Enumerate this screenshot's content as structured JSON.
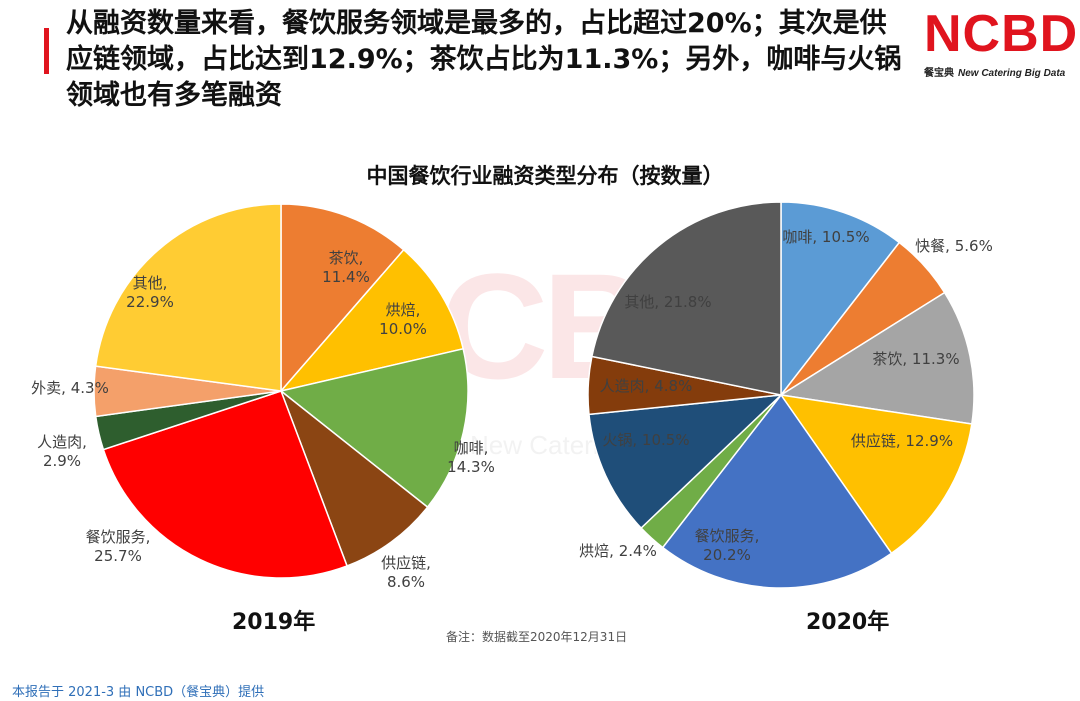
{
  "headline": "从融资数量来看，餐饮服务领域是最多的，占比超过20%；其次是供应链领域，占比达到12.9%；茶饮占比为11.3%；另外，咖啡与火锅领域也有多笔融资",
  "logo": {
    "main": "NCBD",
    "sub_cn": "餐宝典",
    "sub_en": "New Catering Big Data"
  },
  "watermark": {
    "letters": "CBD",
    "text": "New Catering"
  },
  "note": "备注：数据截至2020年12月31日",
  "footer": "本报告于 2021-3 由 NCBD（餐宝典）提供",
  "colors": {
    "accent": "#e0141e"
  },
  "chart_data": {
    "type": "pie",
    "title": "中国餐饮行业融资类型分布（按数量）",
    "charts": [
      {
        "year_label": "2019年",
        "slices": [
          {
            "name": "茶饮",
            "value": 11.4,
            "pct": "11.4%",
            "color": "#ED7D31",
            "label_mode": "stack"
          },
          {
            "name": "烘焙",
            "value": 10.0,
            "pct": "10.0%",
            "color": "#FFC000",
            "label_mode": "stack"
          },
          {
            "name": "咖啡",
            "value": 14.3,
            "pct": "14.3%",
            "color": "#70AD47",
            "label_mode": "stack"
          },
          {
            "name": "供应链",
            "value": 8.6,
            "pct": "8.6%",
            "color": "#8B4513",
            "label_mode": "stack"
          },
          {
            "name": "餐饮服务",
            "value": 25.7,
            "pct": "25.7%",
            "color": "#FF0000",
            "label_mode": "stack"
          },
          {
            "name": "人造肉",
            "value": 2.9,
            "pct": "2.9%",
            "color": "#2E5E2E",
            "label_mode": "stack"
          },
          {
            "name": "外卖",
            "value": 4.3,
            "pct": "4.3%",
            "color": "#F4A06A",
            "label_mode": "inline"
          },
          {
            "name": "其他",
            "value": 22.9,
            "pct": "22.9%",
            "color": "#FFCC33",
            "label_mode": "stack"
          }
        ]
      },
      {
        "year_label": "2020年",
        "slices": [
          {
            "name": "咖啡",
            "value": 10.5,
            "pct": "10.5%",
            "color": "#5B9BD5",
            "label_mode": "inline"
          },
          {
            "name": "快餐",
            "value": 5.6,
            "pct": "5.6%",
            "color": "#ED7D31",
            "label_mode": "inline"
          },
          {
            "name": "茶饮",
            "value": 11.3,
            "pct": "11.3%",
            "color": "#A5A5A5",
            "label_mode": "inline"
          },
          {
            "name": "供应链",
            "value": 12.9,
            "pct": "12.9%",
            "color": "#FFC000",
            "label_mode": "inline"
          },
          {
            "name": "餐饮服务",
            "value": 20.2,
            "pct": "20.2%",
            "color": "#4472C4",
            "label_mode": "stack"
          },
          {
            "name": "烘焙",
            "value": 2.4,
            "pct": "2.4%",
            "color": "#70AD47",
            "label_mode": "inline"
          },
          {
            "name": "火锅",
            "value": 10.5,
            "pct": "10.5%",
            "color": "#1F4E79",
            "label_mode": "inline"
          },
          {
            "name": "人造肉",
            "value": 4.8,
            "pct": "4.8%",
            "color": "#843C0C",
            "label_mode": "inline"
          },
          {
            "name": "其他",
            "value": 21.8,
            "pct": "21.8%",
            "color": "#595959",
            "label_mode": "inline"
          }
        ]
      }
    ]
  }
}
